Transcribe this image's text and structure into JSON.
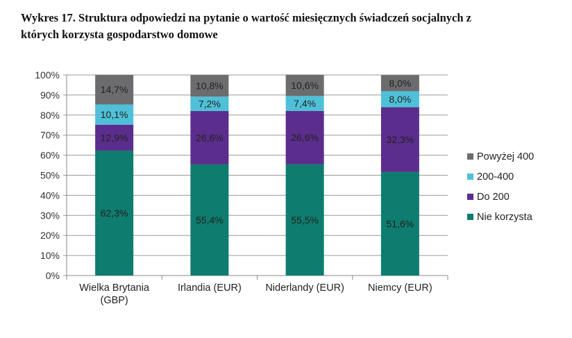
{
  "title": {
    "line1": "Wykres  17. Struktura odpowiedzi na pytanie o wartość miesięcznych świadczeń socjalnych z",
    "line2": "których korzysta gospodarstwo domowe"
  },
  "chart_data": {
    "type": "bar",
    "stacked": true,
    "percent": true,
    "categories": [
      [
        "Wielka Brytania",
        "(GBP)"
      ],
      [
        "Irlandia (EUR)"
      ],
      [
        "Niderlandy (EUR)"
      ],
      [
        "Niemcy (EUR)"
      ]
    ],
    "series": [
      {
        "name": "Nie korzysta",
        "color": "#0e7c6e",
        "values": [
          62.3,
          55.4,
          55.5,
          51.6
        ],
        "labels": [
          "62,3%",
          "55,4%",
          "55,5%",
          "51,6%"
        ]
      },
      {
        "name": "Do 200",
        "color": "#5b2d8c",
        "values": [
          12.9,
          26.6,
          26.6,
          32.3
        ],
        "labels": [
          "12,9%",
          "26,6%",
          "26,6%",
          "32,3%"
        ]
      },
      {
        "name": "200-400",
        "color": "#4fc0d8",
        "values": [
          10.1,
          7.2,
          7.4,
          8.0
        ],
        "labels": [
          "10,1%",
          "7,2%",
          "7,4%",
          "8,0%"
        ]
      },
      {
        "name": "Powyżej 400",
        "color": "#6c6c6e",
        "values": [
          14.7,
          10.8,
          10.6,
          8.0
        ],
        "labels": [
          "14,7%",
          "10,8%",
          "10,6%",
          "8,0%"
        ]
      }
    ],
    "ylim": [
      0,
      100
    ],
    "yticks": [
      "0%",
      "10%",
      "20%",
      "30%",
      "40%",
      "50%",
      "60%",
      "70%",
      "80%",
      "90%",
      "100%"
    ],
    "grid": true,
    "legend": "right"
  }
}
